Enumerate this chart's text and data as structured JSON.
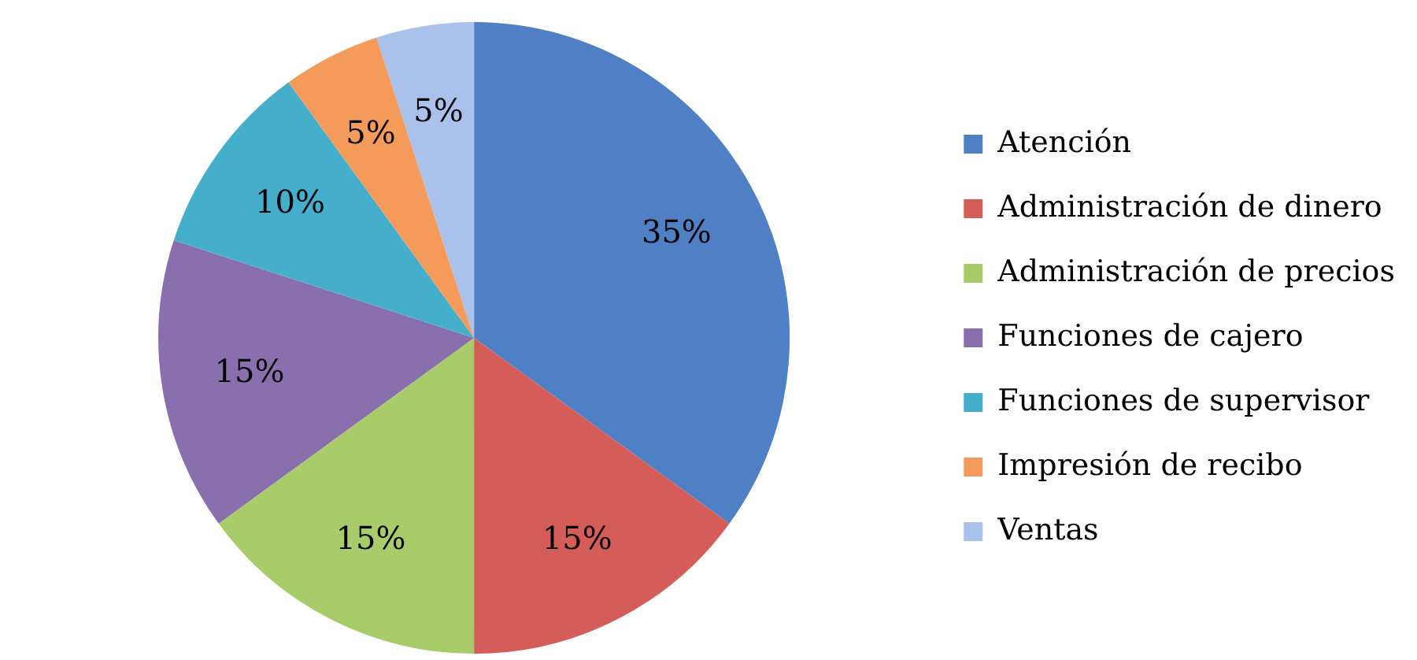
{
  "chart_data": {
    "type": "pie",
    "categories": [
      "Atención",
      "Administración de dinero",
      "Administración de precios",
      "Funciones de cajero",
      "Funciones de supervisor",
      "Impresión de recibo",
      "Ventas"
    ],
    "values": [
      35,
      15,
      15,
      15,
      10,
      5,
      5
    ],
    "value_labels": [
      "35%",
      "15%",
      "15%",
      "15%",
      "10%",
      "5%",
      "5%"
    ],
    "colors": [
      "#4f7fc4",
      "#d45d5a",
      "#a9cc6a",
      "#8a6fae",
      "#45aecb",
      "#f49a5a",
      "#a9c1eb"
    ],
    "legend": "right"
  }
}
